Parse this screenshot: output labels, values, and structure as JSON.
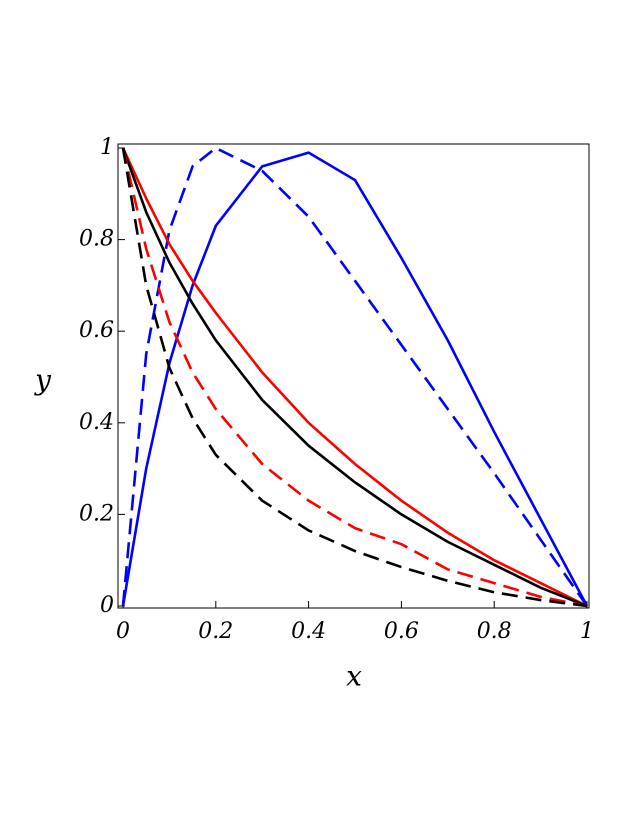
{
  "chart_data": {
    "type": "line",
    "xlabel": "x",
    "ylabel": "y",
    "x": [
      0,
      0.05,
      0.1,
      0.15,
      0.2,
      0.3,
      0.4,
      0.5,
      0.6,
      0.7,
      0.8,
      0.9,
      1
    ],
    "series": [
      {
        "color": "#0000ff",
        "dash": "solid",
        "values": [
          0,
          0.3,
          0.53,
          0.7,
          0.83,
          0.96,
          0.99,
          0.93,
          0.76,
          0.58,
          0.38,
          0.19,
          0
        ]
      },
      {
        "color": "#0000ff",
        "dash": "dashed",
        "values": [
          0,
          0.55,
          0.82,
          0.96,
          1,
          0.95,
          0.85,
          0.71,
          0.57,
          0.43,
          0.29,
          0.145,
          0
        ]
      },
      {
        "color": "#ff0000",
        "dash": "solid",
        "values": [
          1,
          0.89,
          0.79,
          0.71,
          0.64,
          0.51,
          0.4,
          0.31,
          0.23,
          0.16,
          0.1,
          0.05,
          0
        ]
      },
      {
        "color": "#000000",
        "dash": "solid",
        "values": [
          1,
          0.86,
          0.75,
          0.66,
          0.58,
          0.45,
          0.35,
          0.27,
          0.2,
          0.14,
          0.09,
          0.04,
          0
        ]
      },
      {
        "color": "#ff0000",
        "dash": "dashed",
        "values": [
          1,
          0.78,
          0.62,
          0.51,
          0.43,
          0.31,
          0.23,
          0.17,
          0.135,
          0.08,
          0.05,
          0.02,
          0
        ]
      },
      {
        "color": "#000000",
        "dash": "dashed",
        "values": [
          1,
          0.7,
          0.52,
          0.41,
          0.33,
          0.23,
          0.165,
          0.12,
          0.085,
          0.055,
          0.03,
          0.013,
          0
        ]
      }
    ],
    "xlim": [
      0,
      1
    ],
    "ylim": [
      0,
      1
    ],
    "xticks": [
      0,
      0.2,
      0.4,
      0.6,
      0.8,
      1
    ],
    "yticks": [
      0,
      0.2,
      0.4,
      0.6,
      0.8,
      1
    ]
  }
}
